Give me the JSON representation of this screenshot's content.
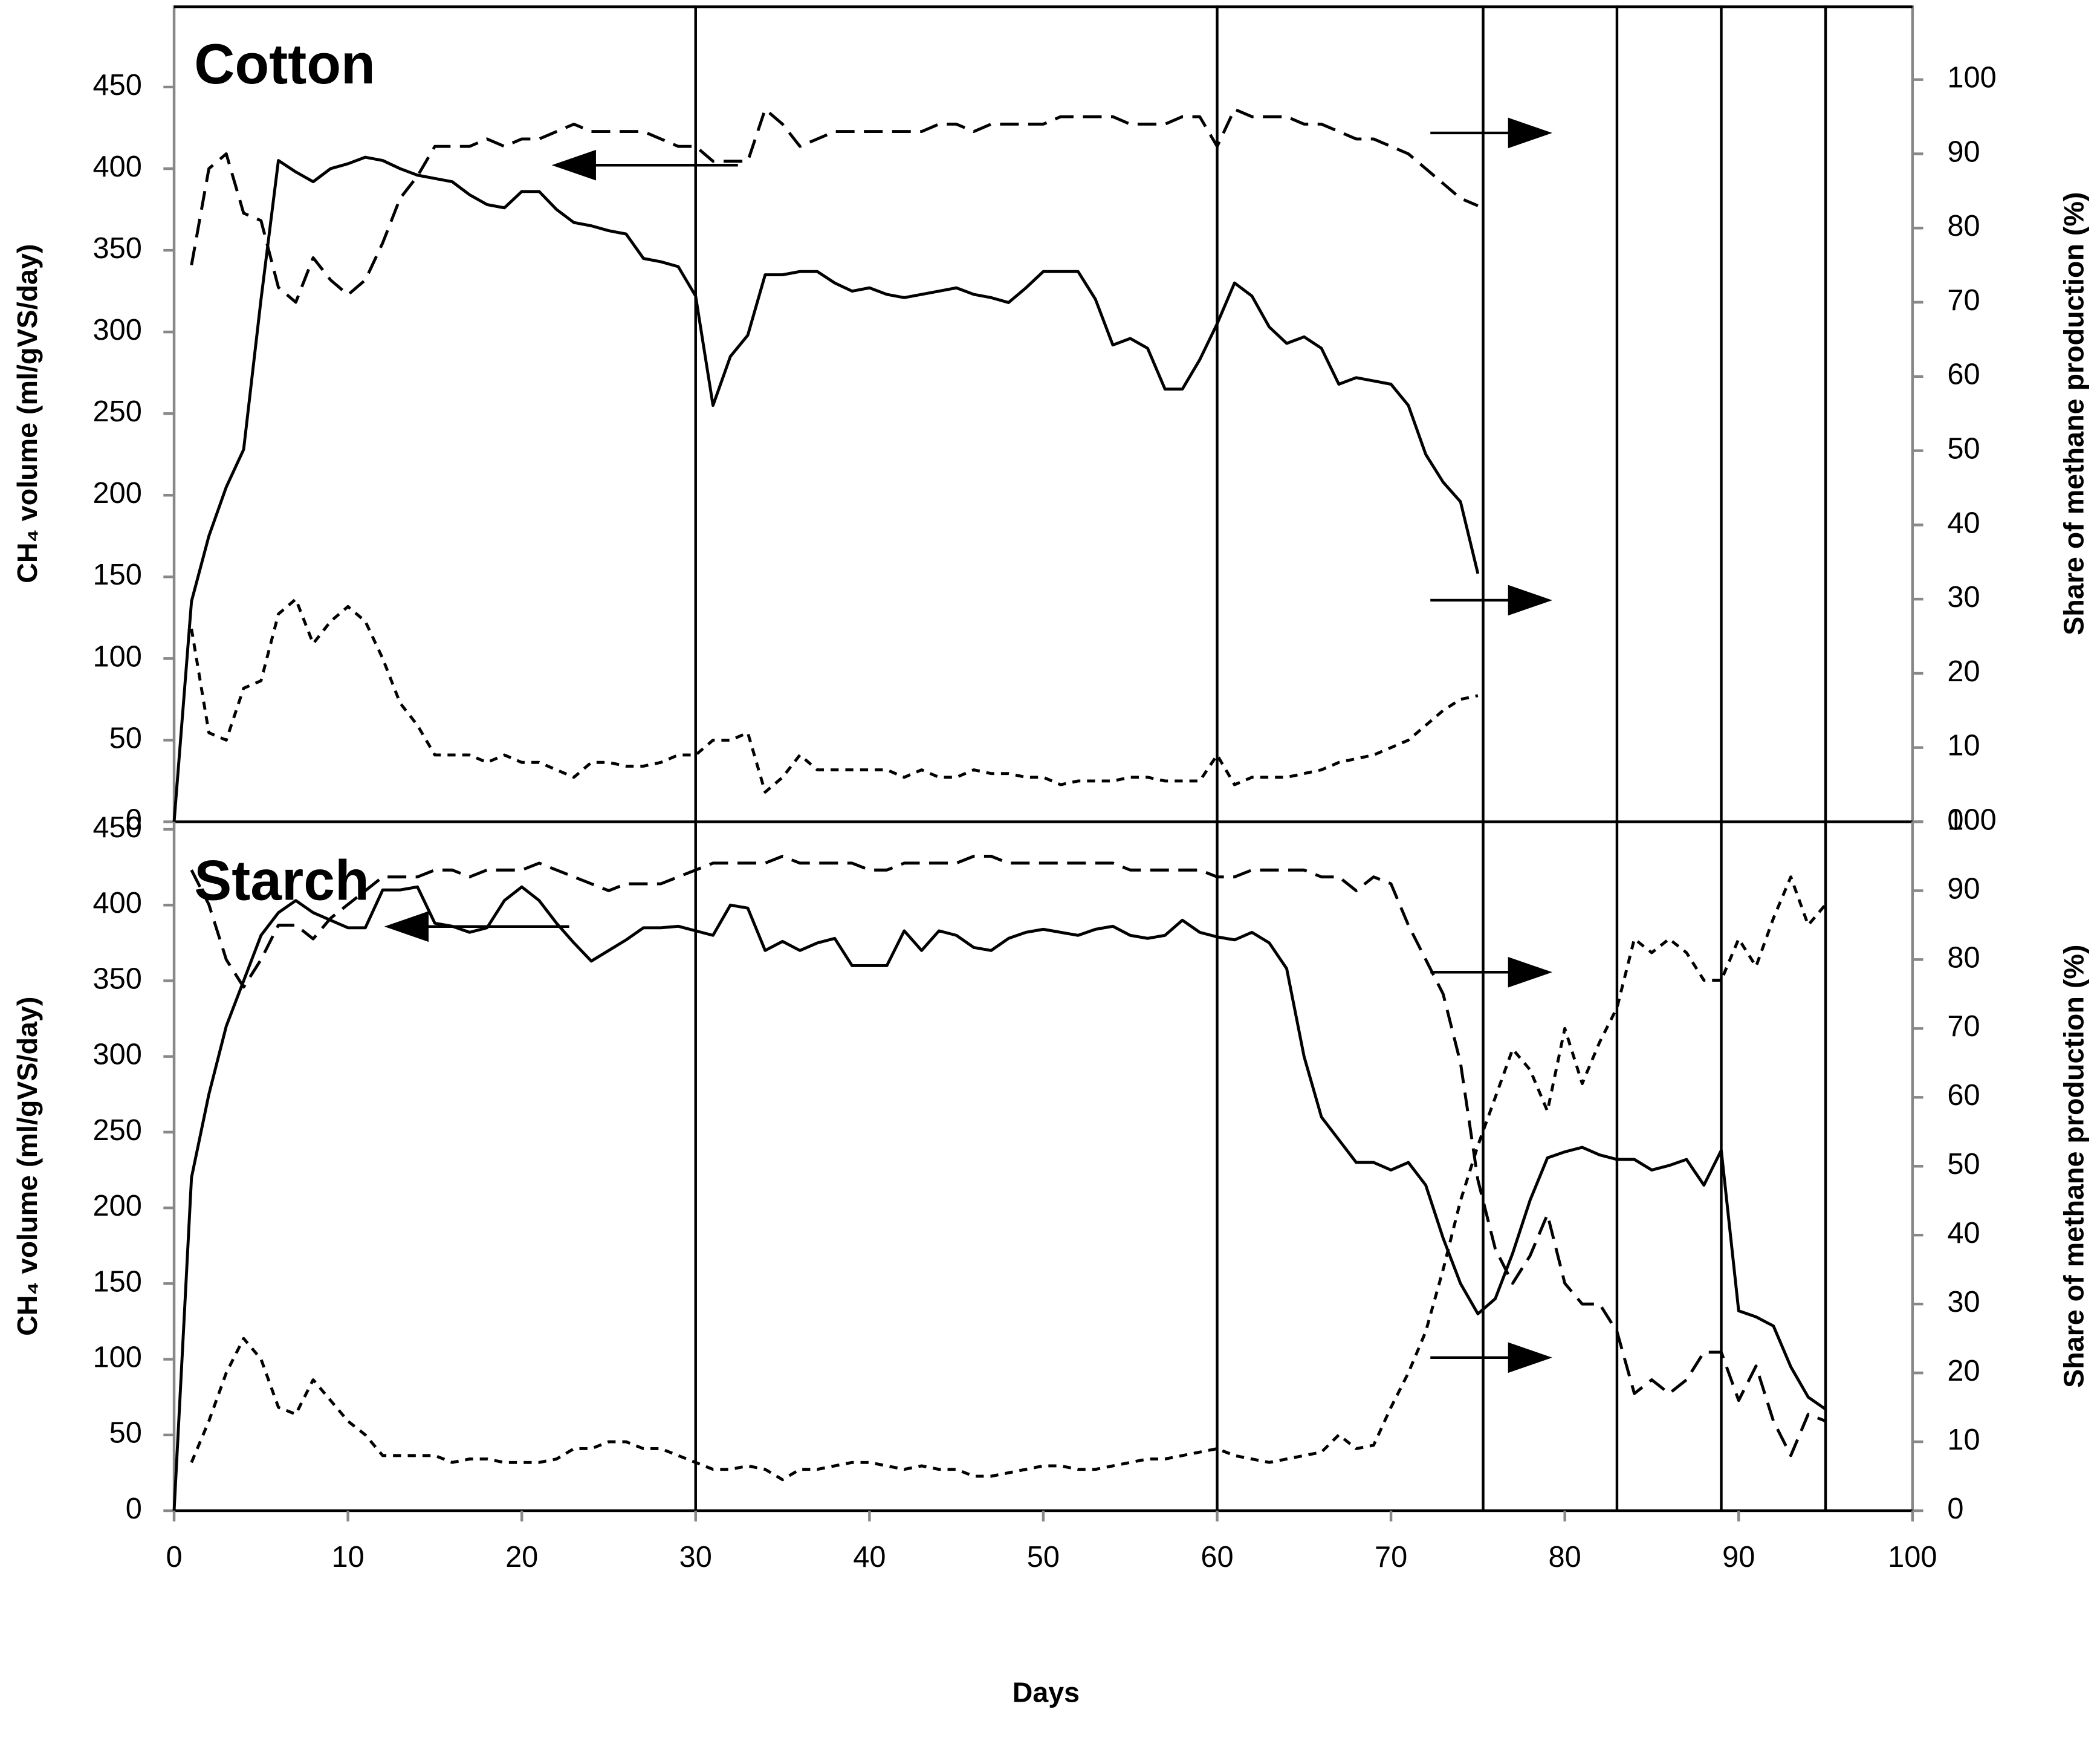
{
  "chart_data": [
    {
      "type": "line",
      "title": "Cotton",
      "y_label": "CH₄ volume (ml/gVS/day)",
      "y2_label": "Share of methane production (%)",
      "x": [
        0,
        1,
        2,
        3,
        4,
        5,
        6,
        7,
        8,
        9,
        10,
        11,
        12,
        13,
        14,
        15,
        16,
        17,
        18,
        19,
        20,
        21,
        22,
        23,
        24,
        25,
        26,
        27,
        28,
        29,
        30,
        31,
        32,
        33,
        34,
        35,
        36,
        37,
        38,
        39,
        40,
        41,
        42,
        43,
        44,
        45,
        46,
        47,
        48,
        49,
        50,
        51,
        52,
        53,
        54,
        55,
        56,
        57,
        58,
        59,
        60,
        61,
        62,
        63,
        64,
        65,
        66,
        67,
        68,
        69,
        70,
        71,
        72,
        73,
        74,
        75
      ],
      "xlim": [
        0,
        100
      ],
      "ylim": [
        0,
        500
      ],
      "yticks": [
        0,
        50,
        100,
        150,
        200,
        250,
        300,
        350,
        400,
        450
      ],
      "y2lim": [
        0,
        110
      ],
      "y2ticks": [
        0,
        10,
        20,
        30,
        40,
        50,
        60,
        70,
        80,
        90,
        100
      ],
      "vlines": [
        30,
        60,
        75.3,
        83,
        89,
        95
      ],
      "series": [
        {
          "color": "#000000",
          "dash": "solid",
          "values": [
            0,
            135,
            175,
            205,
            228,
            320,
            405,
            398,
            392,
            400,
            403,
            407,
            405,
            400,
            396,
            394,
            392,
            384,
            378,
            376,
            386,
            386,
            375,
            367,
            365,
            362,
            360,
            345,
            343,
            340,
            322,
            255,
            285,
            298,
            335,
            335,
            337,
            337,
            330,
            325,
            327,
            323,
            321,
            323,
            325,
            327,
            323,
            321,
            318,
            327,
            337,
            337,
            337,
            320,
            292,
            296,
            290,
            265,
            265,
            283,
            305,
            330,
            322,
            303,
            293,
            297,
            290,
            268,
            272,
            270,
            268,
            255,
            225,
            208,
            196,
            152
          ]
        },
        {
          "color": "#000000",
          "dash": "long",
          "axis": "y2",
          "values": [
            null,
            75,
            88,
            90,
            82,
            81,
            72,
            70,
            76,
            73,
            71,
            73,
            78,
            84,
            87,
            91,
            91,
            91,
            92,
            91,
            92,
            92,
            93,
            94,
            93,
            93,
            93,
            93,
            92,
            91,
            91,
            89,
            89,
            89,
            96,
            94,
            91,
            92,
            93,
            93,
            93,
            93,
            93,
            93,
            94,
            94,
            93,
            94,
            94,
            94,
            94,
            95,
            95,
            95,
            95,
            94,
            94,
            94,
            95,
            95,
            91,
            96,
            95,
            95,
            95,
            94,
            94,
            93,
            92,
            92,
            91,
            90,
            88,
            86,
            84,
            83
          ]
        },
        {
          "color": "#000000",
          "dash": "short",
          "axis": "y2",
          "values": [
            null,
            26,
            12,
            11,
            18,
            19,
            28,
            30,
            24,
            27,
            29,
            27,
            22,
            16,
            13,
            9,
            9,
            9,
            8,
            9,
            8,
            8,
            7,
            6,
            8,
            8,
            7.5,
            7.5,
            8,
            9,
            9,
            11,
            11,
            12,
            4,
            6,
            9,
            7,
            7,
            7,
            7,
            7,
            6,
            7,
            6,
            6,
            7,
            6.5,
            6.5,
            6,
            6,
            5,
            5.5,
            5.5,
            5.5,
            6,
            6,
            5.5,
            5.5,
            5.5,
            9,
            5,
            6,
            6,
            6,
            6.5,
            7,
            8,
            8.5,
            9,
            10,
            11,
            13,
            15,
            16.5,
            17
          ]
        }
      ]
    },
    {
      "type": "line",
      "title": "Starch",
      "y_label": "CH₄ volume (ml/gVS/day)",
      "y2_label": "Share of methane production (%)",
      "x_label": "Days",
      "x": [
        0,
        1,
        2,
        3,
        4,
        5,
        6,
        7,
        8,
        9,
        10,
        11,
        12,
        13,
        14,
        15,
        16,
        17,
        18,
        19,
        20,
        21,
        22,
        23,
        24,
        25,
        26,
        27,
        28,
        29,
        30,
        31,
        32,
        33,
        34,
        35,
        36,
        37,
        38,
        39,
        40,
        41,
        42,
        43,
        44,
        45,
        46,
        47,
        48,
        49,
        50,
        51,
        52,
        53,
        54,
        55,
        56,
        57,
        58,
        59,
        60,
        61,
        62,
        63,
        64,
        65,
        66,
        67,
        68,
        69,
        70,
        71,
        72,
        73,
        74,
        75,
        76,
        77,
        78,
        79,
        80,
        81,
        82,
        83,
        84,
        85,
        86,
        87,
        88,
        89,
        90,
        91,
        92,
        93,
        94,
        95
      ],
      "xlim": [
        0,
        100
      ],
      "xticks": [
        0,
        10,
        20,
        30,
        40,
        50,
        60,
        70,
        80,
        90,
        100
      ],
      "ylim": [
        0,
        455
      ],
      "yticks": [
        0,
        50,
        100,
        150,
        200,
        250,
        300,
        350,
        400,
        450
      ],
      "y2lim": [
        0,
        100
      ],
      "y2ticks": [
        0,
        10,
        20,
        30,
        40,
        50,
        60,
        70,
        80,
        90,
        100
      ],
      "vlines": [
        30,
        60,
        75.3,
        83,
        89,
        95
      ],
      "series": [
        {
          "color": "#000000",
          "dash": "solid",
          "values": [
            0,
            220,
            275,
            320,
            350,
            380,
            395,
            403,
            395,
            390,
            385,
            385,
            410,
            410,
            412,
            388,
            386,
            382,
            385,
            403,
            412,
            403,
            388,
            375,
            363,
            370,
            377,
            385,
            385,
            386,
            383,
            380,
            400,
            398,
            370,
            376,
            370,
            375,
            378,
            360,
            360,
            360,
            383,
            370,
            383,
            380,
            372,
            370,
            378,
            382,
            384,
            382,
            380,
            384,
            386,
            380,
            378,
            380,
            390,
            382,
            379,
            377,
            382,
            375,
            358,
            300,
            260,
            245,
            230,
            230,
            225,
            230,
            215,
            180,
            150,
            130,
            140,
            170,
            205,
            233,
            237,
            240,
            235,
            232,
            232,
            225,
            228,
            232,
            215,
            238,
            132,
            128,
            122,
            95,
            75,
            67
          ]
        },
        {
          "color": "#000000",
          "dash": "long",
          "axis": "y2",
          "values": [
            null,
            93,
            88,
            80,
            76,
            80,
            85,
            85,
            83,
            86,
            88,
            90,
            92,
            92,
            92,
            93,
            93,
            92,
            93,
            93,
            93,
            94,
            93,
            92,
            91,
            90,
            91,
            91,
            91,
            92,
            93,
            94,
            94,
            94,
            94,
            95,
            94,
            94,
            94,
            94,
            93,
            93,
            94,
            94,
            94,
            94,
            95,
            95,
            94,
            94,
            94,
            94,
            94,
            94,
            94,
            93,
            93,
            93,
            93,
            93,
            92,
            92,
            93,
            93,
            93,
            93,
            92,
            92,
            90,
            92,
            91,
            85,
            80,
            75,
            65,
            48,
            38,
            33,
            37,
            43,
            33,
            30,
            30,
            26,
            17,
            19,
            17,
            19,
            23,
            23,
            16,
            21,
            13,
            8,
            14,
            13
          ]
        },
        {
          "color": "#000000",
          "dash": "short",
          "axis": "y2",
          "values": [
            null,
            7,
            13,
            20,
            25,
            22,
            15,
            14,
            19,
            16,
            13,
            11,
            8,
            8,
            8,
            8,
            7,
            7.5,
            7.5,
            7,
            7,
            7,
            7.5,
            9,
            9,
            10,
            10,
            9,
            9,
            8,
            7,
            6,
            6,
            6.5,
            6,
            4.5,
            6,
            6,
            6.5,
            7,
            7,
            6.5,
            6,
            6.5,
            6,
            6,
            5,
            5,
            5.5,
            6,
            6.5,
            6.5,
            6,
            6,
            6.5,
            7,
            7.5,
            7.5,
            8,
            8.5,
            9,
            8,
            7.5,
            7,
            7.5,
            8,
            8.5,
            11,
            9,
            9.5,
            15,
            20,
            26,
            35,
            45,
            53,
            60,
            67,
            64,
            58,
            70,
            62,
            68,
            73,
            83,
            81,
            83,
            81,
            77,
            77,
            83,
            79,
            86,
            92,
            85,
            88
          ]
        }
      ]
    }
  ]
}
